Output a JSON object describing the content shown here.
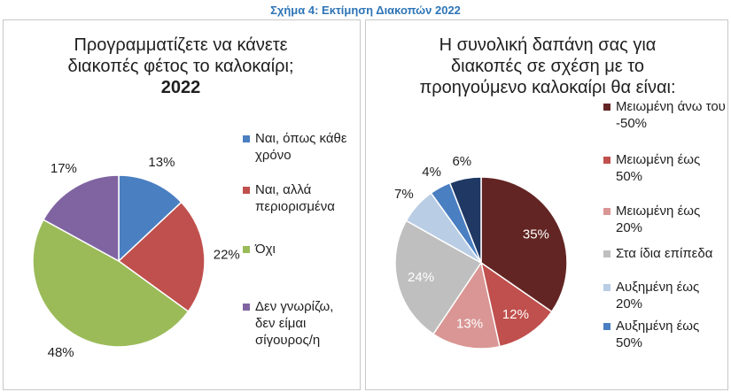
{
  "figure_title": "Σχήμα 4: Εκτίμηση Διακοπών 2022",
  "chart_data": [
    {
      "type": "pie",
      "title": "Προγραμματίζετε να κάνετε διακοπές φέτος το καλοκαίρι;",
      "subtitle": "2022",
      "legend_position": "right",
      "slices": [
        {
          "label": "Ναι, όπως κάθε χρόνο",
          "value": 13,
          "value_label": "13%",
          "color": "#4a7fc1"
        },
        {
          "label": "Ναι, αλλά περιορισμένα",
          "value": 22,
          "value_label": "22%",
          "color": "#c0504d"
        },
        {
          "label": "Όχι",
          "value": 48,
          "value_label": "48%",
          "color": "#9bbb59"
        },
        {
          "label": "Δεν γνωρίζω, δεν είμαι σίγουρος/η",
          "value": 17,
          "value_label": "17%",
          "color": "#8064a2"
        }
      ]
    },
    {
      "type": "pie",
      "title": "Η συνολική δαπάνη σας για διακοπές σε σχέση με το προηγούμενο καλοκαίρι θα είναι:",
      "legend_position": "right",
      "slices": [
        {
          "label": "Μειωμένη άνω του -50%",
          "value": 35,
          "value_label": "35%",
          "color": "#632523"
        },
        {
          "label": "Μειωμένη έως 50%",
          "value": 12,
          "value_label": "12%",
          "color": "#c0504d"
        },
        {
          "label": "Μειωμένη έως 20%",
          "value": 13,
          "value_label": "13%",
          "color": "#d99694"
        },
        {
          "label": "Στα ίδια επίπεδα",
          "value": 24,
          "value_label": "24%",
          "color": "#bfbfbf"
        },
        {
          "label": "Αυξημένη έως 20%",
          "value": 7,
          "value_label": "7%",
          "color": "#b9cde5"
        },
        {
          "label": "Αυξημένη έως 50%",
          "value": 4,
          "value_label": "4%",
          "color": "#4a7fc1"
        },
        {
          "label": "",
          "value": 6,
          "value_label": "6%",
          "color": "#1f3864"
        }
      ]
    }
  ]
}
